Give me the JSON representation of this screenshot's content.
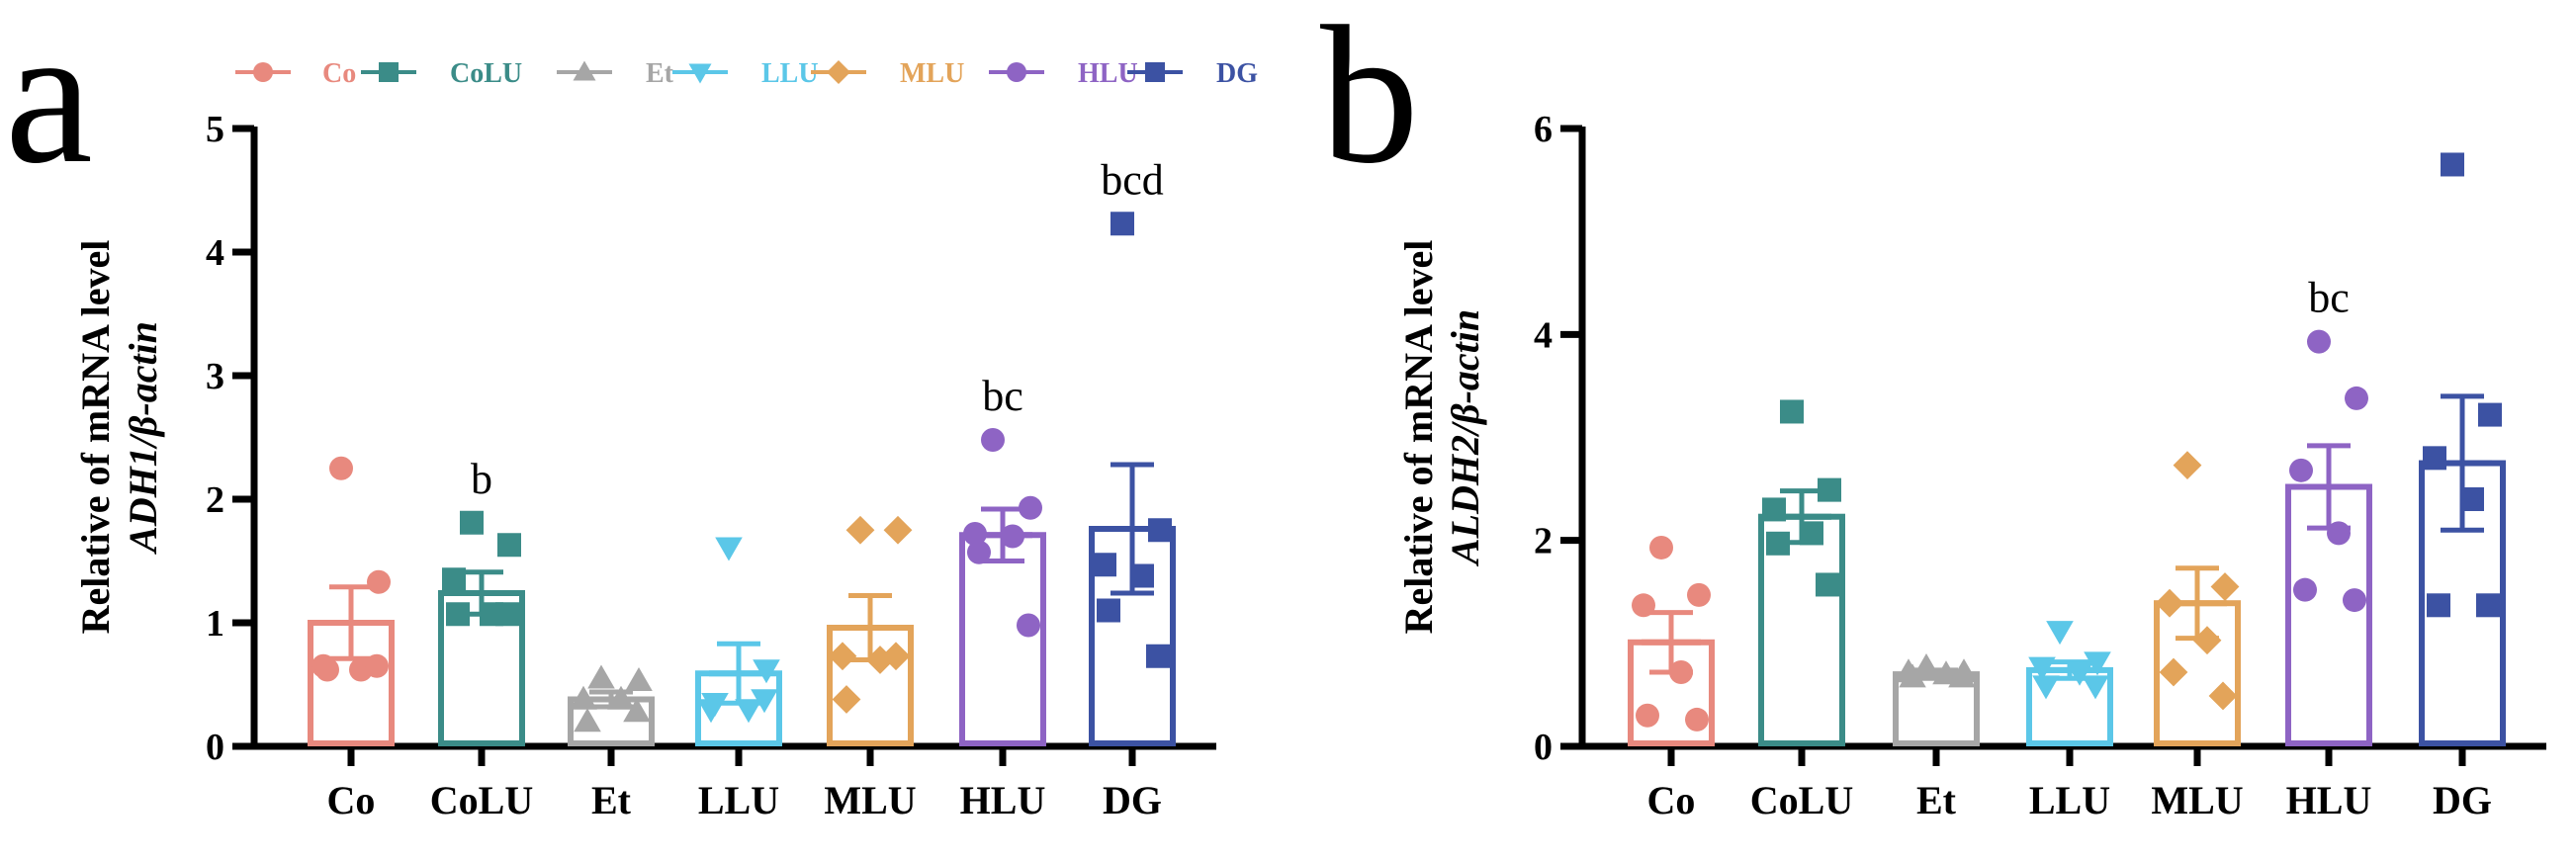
{
  "panel_labels": [
    "a",
    "b"
  ],
  "legend": [
    {
      "name": "Co",
      "color": "#e8897e",
      "marker": "circle"
    },
    {
      "name": "CoLU",
      "color": "#3b8c88",
      "marker": "square"
    },
    {
      "name": "Et",
      "color": "#a6a6a6",
      "marker": "triangle-up"
    },
    {
      "name": "LLU",
      "color": "#5bc7e8",
      "marker": "triangle-down"
    },
    {
      "name": "MLU",
      "color": "#e3a45a",
      "marker": "diamond"
    },
    {
      "name": "HLU",
      "color": "#8e64c4",
      "marker": "circle"
    },
    {
      "name": "DG",
      "color": "#3c52a3",
      "marker": "square"
    }
  ],
  "chart_data": [
    {
      "type": "bar",
      "panel": "a",
      "ylabel_line1": "Relative of mRNA level",
      "ylabel_line2": "ADH1/β-actin",
      "ylim": [
        0,
        5
      ],
      "yticks": [
        "0",
        "1",
        "2",
        "3",
        "4",
        "5"
      ],
      "categories": [
        "Co",
        "CoLU",
        "Et",
        "LLU",
        "MLU",
        "HLU",
        "DG"
      ],
      "values": [
        1.0,
        1.24,
        0.38,
        0.59,
        0.96,
        1.71,
        1.76
      ],
      "sem": [
        0.29,
        0.17,
        0.06,
        0.24,
        0.26,
        0.21,
        0.52
      ],
      "points": [
        [
          2.25,
          1.33,
          0.65,
          0.62,
          0.62,
          0.65
        ],
        [
          1.81,
          1.63,
          1.35,
          1.07,
          1.07,
          1.07
        ],
        [
          0.55,
          0.53,
          0.38,
          0.38,
          0.2,
          0.28
        ],
        [
          1.61,
          0.62,
          0.3,
          0.3,
          0.35,
          0.38
        ],
        [
          1.75,
          1.75,
          0.73,
          0.7,
          0.38,
          0.73
        ],
        [
          2.48,
          1.93,
          1.72,
          1.7,
          1.57,
          0.98
        ],
        [
          4.23,
          1.75,
          1.47,
          1.38,
          1.1,
          0.73
        ]
      ],
      "significance": [
        "",
        "b",
        "",
        "",
        "",
        "bc",
        "bcd"
      ]
    },
    {
      "type": "bar",
      "panel": "b",
      "ylabel_line1": "Relative of mRNA level",
      "ylabel_line2": "ALDH2/β-actin",
      "ylim": [
        0,
        6
      ],
      "yticks": [
        "0",
        "2",
        "4",
        "6"
      ],
      "categories": [
        "Co",
        "CoLU",
        "Et",
        "LLU",
        "MLU",
        "HLU",
        "DG"
      ],
      "values": [
        1.01,
        2.23,
        0.7,
        0.74,
        1.39,
        2.52,
        2.75
      ],
      "sem": [
        0.29,
        0.25,
        0.04,
        0.08,
        0.34,
        0.4,
        0.65
      ],
      "points": [
        [
          1.93,
          1.47,
          1.37,
          0.72,
          0.3,
          0.26
        ],
        [
          3.25,
          2.49,
          2.3,
          2.07,
          1.97,
          1.57
        ],
        [
          0.77,
          0.72,
          0.72,
          0.7,
          0.67,
          0.67
        ],
        [
          1.12,
          0.82,
          0.77,
          0.72,
          0.59,
          0.59
        ],
        [
          2.73,
          1.55,
          1.39,
          1.03,
          0.72,
          0.49
        ],
        [
          3.93,
          3.38,
          2.68,
          2.07,
          1.52,
          1.42
        ],
        [
          5.65,
          3.22,
          2.8,
          2.4,
          1.37,
          1.37
        ]
      ],
      "significance": [
        "",
        "",
        "",
        "",
        "",
        "bc",
        ""
      ]
    }
  ]
}
